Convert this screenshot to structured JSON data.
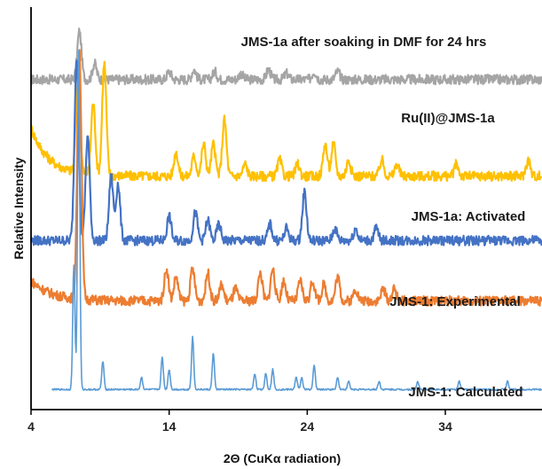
{
  "chart_data": {
    "type": "line",
    "xlabel": "2Θ  (CuKα radiation)",
    "ylabel": "Relative Intensity",
    "xlim": [
      4,
      41
    ],
    "x_ticks": [
      4,
      14,
      24,
      34
    ],
    "x_tick_labels": [
      "4",
      "14",
      "24",
      "34"
    ],
    "y_ticks": false,
    "grid": false,
    "legend": "none",
    "series": [
      {
        "name": "JMS-1a after soaking in DMF for 24 hrs",
        "color": "#a5a5a5",
        "baseline": 0.82,
        "peaks": [
          [
            7.5,
            0.12
          ],
          [
            8.6,
            0.04
          ],
          [
            14,
            0.02
          ],
          [
            15.8,
            0.025
          ],
          [
            17.3,
            0.02
          ],
          [
            19.2,
            0.015
          ],
          [
            21.2,
            0.025
          ],
          [
            22.5,
            0.015
          ],
          [
            24.5,
            0.02
          ],
          [
            26.2,
            0.02
          ]
        ]
      },
      {
        "name": "Ru(II)@JMS-1a",
        "color": "#ffc000",
        "baseline": 0.58,
        "peaks": [
          [
            7.4,
            0.22
          ],
          [
            8.5,
            0.18
          ],
          [
            9.3,
            0.28
          ],
          [
            14.5,
            0.06
          ],
          [
            15.8,
            0.05
          ],
          [
            16.5,
            0.08
          ],
          [
            17.2,
            0.08
          ],
          [
            18,
            0.14
          ],
          [
            19.5,
            0.03
          ],
          [
            22,
            0.04
          ],
          [
            23.3,
            0.03
          ],
          [
            25.3,
            0.08
          ],
          [
            25.9,
            0.08
          ],
          [
            27,
            0.04
          ],
          [
            29.4,
            0.04
          ],
          [
            30.5,
            0.03
          ],
          [
            34.8,
            0.03
          ],
          [
            40,
            0.04
          ]
        ]
      },
      {
        "name": "JMS-1a: Activated",
        "color": "#4472c4",
        "baseline": 0.42,
        "peaks": [
          [
            7.3,
            0.46
          ],
          [
            8.1,
            0.26
          ],
          [
            9.8,
            0.16
          ],
          [
            10.3,
            0.14
          ],
          [
            14,
            0.06
          ],
          [
            15.9,
            0.07
          ],
          [
            16.8,
            0.05
          ],
          [
            17.6,
            0.04
          ],
          [
            21.3,
            0.04
          ],
          [
            22.5,
            0.03
          ],
          [
            23.8,
            0.12
          ],
          [
            26,
            0.03
          ],
          [
            27.5,
            0.03
          ],
          [
            29,
            0.03
          ]
        ]
      },
      {
        "name": "JMS-1: Experimental",
        "color": "#ed7d31",
        "baseline": 0.27,
        "peaks": [
          [
            7.5,
            0.62
          ],
          [
            13.8,
            0.08
          ],
          [
            14.5,
            0.06
          ],
          [
            15.7,
            0.08
          ],
          [
            16.8,
            0.07
          ],
          [
            17.8,
            0.04
          ],
          [
            18.8,
            0.03
          ],
          [
            20.6,
            0.07
          ],
          [
            21.5,
            0.08
          ],
          [
            22.3,
            0.05
          ],
          [
            23.5,
            0.05
          ],
          [
            24.4,
            0.05
          ],
          [
            25.2,
            0.04
          ],
          [
            26.2,
            0.06
          ],
          [
            27.5,
            0.03
          ],
          [
            29.5,
            0.03
          ],
          [
            30.3,
            0.03
          ]
        ]
      },
      {
        "name": "JMS-1: Calculated",
        "color": "#5b9bd5",
        "baseline": 0.05,
        "peaks": [
          [
            7.1,
            0.31
          ],
          [
            7.45,
            0.85
          ],
          [
            9.2,
            0.07
          ],
          [
            12,
            0.03
          ],
          [
            13.5,
            0.08
          ],
          [
            14,
            0.05
          ],
          [
            15.7,
            0.13
          ],
          [
            17.2,
            0.09
          ],
          [
            20.2,
            0.04
          ],
          [
            21,
            0.04
          ],
          [
            21.5,
            0.05
          ],
          [
            23.2,
            0.03
          ],
          [
            23.6,
            0.03
          ],
          [
            24.5,
            0.06
          ],
          [
            26.2,
            0.03
          ],
          [
            27,
            0.02
          ],
          [
            29.2,
            0.02
          ],
          [
            32,
            0.02
          ],
          [
            35,
            0.02
          ],
          [
            38.5,
            0.02
          ]
        ]
      }
    ]
  }
}
